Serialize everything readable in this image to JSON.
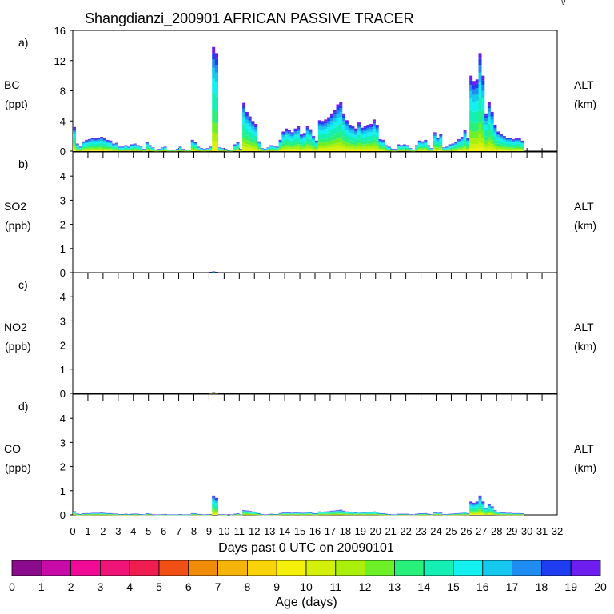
{
  "title": "Shangdianzi_200901 AFRICAN PASSIVE TRACER",
  "corner_mark": "\\/",
  "xlabel": "Days past 0 UTC on 20090101",
  "x_ticks": [
    "0",
    "1",
    "2",
    "3",
    "4",
    "5",
    "6",
    "7",
    "8",
    "9",
    "10",
    "11",
    "12",
    "13",
    "14",
    "15",
    "16",
    "17",
    "18",
    "19",
    "20",
    "21",
    "22",
    "23",
    "24",
    "25",
    "26",
    "27",
    "28",
    "29",
    "30",
    "31",
    "32"
  ],
  "right_labels": {
    "alt": "ALT",
    "unit": "(km)"
  },
  "colorbar": {
    "label": "Age (days)",
    "ticks": [
      "0",
      "1",
      "2",
      "3",
      "4",
      "5",
      "6",
      "7",
      "8",
      "9",
      "10",
      "11",
      "12",
      "13",
      "14",
      "15",
      "16",
      "17",
      "18",
      "19",
      "20"
    ],
    "colors": [
      "#8c0a8c",
      "#c80aa8",
      "#f00a96",
      "#f01478",
      "#f01e50",
      "#f05014",
      "#f08c0a",
      "#f5b40a",
      "#fad20a",
      "#f5f00a",
      "#d2f00a",
      "#aaf00a",
      "#6ef028",
      "#28f07a",
      "#14f0b4",
      "#14f0f0",
      "#14c8f0",
      "#1e8cf0",
      "#1e3cf0",
      "#6e1ef0"
    ]
  },
  "chart_data": [
    {
      "panel_label": "a)",
      "species": "BC",
      "unit": "(ppt)",
      "type": "stacked bar",
      "xlim": [
        0,
        32
      ],
      "ylim": [
        0,
        16
      ],
      "yticks": [
        "0",
        "4",
        "8",
        "12",
        "16"
      ],
      "x": [
        0.1,
        0.3,
        0.5,
        0.7,
        0.9,
        1.1,
        1.3,
        1.5,
        1.7,
        1.9,
        2.1,
        2.3,
        2.5,
        2.7,
        2.9,
        3.1,
        3.3,
        3.5,
        3.7,
        3.9,
        4.1,
        4.3,
        4.5,
        4.7,
        4.9,
        5.1,
        5.3,
        5.5,
        5.7,
        5.9,
        6.1,
        6.3,
        6.5,
        6.7,
        6.9,
        7.1,
        7.3,
        7.5,
        7.7,
        7.9,
        8.1,
        8.3,
        8.5,
        8.7,
        8.9,
        9.1,
        9.3,
        9.5,
        9.7,
        9.9,
        10.1,
        10.3,
        10.5,
        10.7,
        10.9,
        11.1,
        11.3,
        11.5,
        11.7,
        11.9,
        12.1,
        12.3,
        12.5,
        12.7,
        12.9,
        13.1,
        13.3,
        13.5,
        13.7,
        13.9,
        14.1,
        14.3,
        14.5,
        14.7,
        14.9,
        15.1,
        15.3,
        15.5,
        15.7,
        15.9,
        16.1,
        16.3,
        16.5,
        16.7,
        16.9,
        17.1,
        17.3,
        17.5,
        17.7,
        17.9,
        18.1,
        18.3,
        18.5,
        18.7,
        18.9,
        19.1,
        19.3,
        19.5,
        19.7,
        19.9,
        20.1,
        20.3,
        20.5,
        20.7,
        20.9,
        21.1,
        21.3,
        21.5,
        21.7,
        21.9,
        22.1,
        22.3,
        22.5,
        22.7,
        22.9,
        23.1,
        23.3,
        23.5,
        23.7,
        23.9,
        24.1,
        24.3,
        24.5,
        24.7,
        24.9,
        25.1,
        25.3,
        25.5,
        25.7,
        25.9,
        26.1,
        26.3,
        26.5,
        26.7,
        26.9,
        27.1,
        27.3,
        27.5,
        27.7,
        27.9,
        28.1,
        28.3,
        28.5,
        28.7,
        28.9,
        29.1,
        29.3,
        29.5,
        29.7,
        29.9,
        30.1,
        30.3,
        30.5,
        30.7,
        30.9,
        31.1,
        31.3
      ],
      "total": [
        3.2,
        1.0,
        0.6,
        1.3,
        1.5,
        1.6,
        1.8,
        1.7,
        1.8,
        1.9,
        1.7,
        1.5,
        1.4,
        1.0,
        1.1,
        0.6,
        0.6,
        0.8,
        0.6,
        0.9,
        1.0,
        0.8,
        0.7,
        0.3,
        1.2,
        0.8,
        0.5,
        0.2,
        0.3,
        0.5,
        0.6,
        0.2,
        0.2,
        0.2,
        0.3,
        0.6,
        0.3,
        0.2,
        0.2,
        1.5,
        1.2,
        0.6,
        0.4,
        0.3,
        0.4,
        0.6,
        13.8,
        13.0,
        0.5,
        0.4,
        0.3,
        0.1,
        0.2,
        0.9,
        1.2,
        0.3,
        6.4,
        5.2,
        4.6,
        4.0,
        3.6,
        1.3,
        0.4,
        0.3,
        0.5,
        0.8,
        0.7,
        0.6,
        1.5,
        2.6,
        3.0,
        2.8,
        2.5,
        3.0,
        3.3,
        2.2,
        2.4,
        3.3,
        2.9,
        2.0,
        1.4,
        4.1,
        4.0,
        4.2,
        4.5,
        5.0,
        5.5,
        6.2,
        6.5,
        5.0,
        4.1,
        3.5,
        3.4,
        3.0,
        3.8,
        3.1,
        3.3,
        3.5,
        3.6,
        4.2,
        3.5,
        1.6,
        1.5,
        0.8,
        0.6,
        0.3,
        0.3,
        0.9,
        0.8,
        0.9,
        0.8,
        0.4,
        0.2,
        0.8,
        1.4,
        1.3,
        1.5,
        0.8,
        0.4,
        2.5,
        1.8,
        2.3,
        0.5,
        0.6,
        0.9,
        1.0,
        1.2,
        1.6,
        1.9,
        2.8,
        1.7,
        10.0,
        9.3,
        9.5,
        13.0,
        10.0,
        5.0,
        6.5,
        5.2,
        3.5,
        2.6,
        2.3,
        2.0,
        1.8,
        1.8,
        1.6,
        1.7,
        1.7,
        1.4
      ]
    },
    {
      "panel_label": "b)",
      "species": "SO2",
      "unit": "(ppb)",
      "type": "stacked bar",
      "xlim": [
        0,
        32
      ],
      "ylim": [
        0,
        5
      ],
      "yticks": [
        "0",
        "1",
        "2",
        "3",
        "4"
      ],
      "x": [
        9.1,
        9.3,
        9.5
      ],
      "total": [
        0.03,
        0.05,
        0.03
      ]
    },
    {
      "panel_label": "c)",
      "species": "NO2",
      "unit": "(ppb)",
      "type": "stacked bar",
      "xlim": [
        0,
        32
      ],
      "ylim": [
        0,
        5
      ],
      "yticks": [
        "0",
        "1",
        "2",
        "3",
        "4"
      ],
      "x": [
        9.1,
        9.3,
        9.5
      ],
      "total": [
        0.03,
        0.05,
        0.03
      ]
    },
    {
      "panel_label": "d)",
      "species": "CO",
      "unit": "(ppb)",
      "type": "stacked bar",
      "xlim": [
        0,
        32
      ],
      "ylim": [
        0,
        5
      ],
      "yticks": [
        "0",
        "1",
        "2",
        "3",
        "4"
      ],
      "x": [
        0.1,
        0.3,
        0.5,
        0.7,
        0.9,
        1.1,
        1.3,
        1.5,
        1.7,
        1.9,
        2.1,
        2.3,
        2.5,
        2.7,
        2.9,
        3.1,
        3.3,
        3.5,
        3.7,
        3.9,
        4.1,
        4.3,
        4.5,
        4.7,
        4.9,
        5.1,
        5.3,
        5.5,
        5.7,
        5.9,
        6.1,
        6.3,
        6.5,
        6.7,
        6.9,
        7.1,
        7.3,
        7.5,
        7.7,
        7.9,
        8.1,
        8.3,
        8.5,
        8.7,
        8.9,
        9.1,
        9.3,
        9.5,
        9.7,
        9.9,
        10.1,
        10.3,
        10.5,
        10.7,
        10.9,
        11.1,
        11.3,
        11.5,
        11.7,
        11.9,
        12.1,
        12.3,
        12.5,
        12.7,
        12.9,
        13.1,
        13.3,
        13.5,
        13.7,
        13.9,
        14.1,
        14.3,
        14.5,
        14.7,
        14.9,
        15.1,
        15.3,
        15.5,
        15.7,
        15.9,
        16.1,
        16.3,
        16.5,
        16.7,
        16.9,
        17.1,
        17.3,
        17.5,
        17.7,
        17.9,
        18.1,
        18.3,
        18.5,
        18.7,
        18.9,
        19.1,
        19.3,
        19.5,
        19.7,
        19.9,
        20.1,
        20.3,
        20.5,
        20.7,
        20.9,
        21.1,
        21.3,
        21.5,
        21.7,
        21.9,
        22.1,
        22.3,
        22.5,
        22.7,
        22.9,
        23.1,
        23.3,
        23.5,
        23.7,
        23.9,
        24.1,
        24.3,
        24.5,
        24.7,
        24.9,
        25.1,
        25.3,
        25.5,
        25.7,
        25.9,
        26.1,
        26.3,
        26.5,
        26.7,
        26.9,
        27.1,
        27.3,
        27.5,
        27.7,
        27.9,
        28.1,
        28.3,
        28.5,
        28.7,
        28.9,
        29.1,
        29.3,
        29.5,
        29.7,
        29.9,
        30.1,
        30.3,
        30.5,
        30.7,
        30.9,
        31.1,
        31.3
      ],
      "total": [
        0.15,
        0.05,
        0.03,
        0.06,
        0.07,
        0.07,
        0.08,
        0.08,
        0.08,
        0.09,
        0.08,
        0.07,
        0.07,
        0.05,
        0.05,
        0.03,
        0.03,
        0.04,
        0.03,
        0.04,
        0.05,
        0.04,
        0.03,
        0.01,
        0.06,
        0.04,
        0.02,
        0.01,
        0.01,
        0.02,
        0.03,
        0.01,
        0.01,
        0.01,
        0.01,
        0.03,
        0.01,
        0.01,
        0.01,
        0.07,
        0.06,
        0.03,
        0.02,
        0.01,
        0.02,
        0.03,
        0.8,
        0.7,
        0.02,
        0.02,
        0.01,
        0.0,
        0.01,
        0.04,
        0.06,
        0.01,
        0.2,
        0.18,
        0.16,
        0.14,
        0.12,
        0.06,
        0.02,
        0.01,
        0.02,
        0.04,
        0.03,
        0.03,
        0.07,
        0.09,
        0.1,
        0.09,
        0.08,
        0.1,
        0.11,
        0.08,
        0.08,
        0.11,
        0.1,
        0.07,
        0.06,
        0.14,
        0.13,
        0.14,
        0.15,
        0.17,
        0.18,
        0.2,
        0.21,
        0.17,
        0.14,
        0.12,
        0.12,
        0.1,
        0.13,
        0.11,
        0.11,
        0.12,
        0.12,
        0.14,
        0.12,
        0.07,
        0.06,
        0.04,
        0.03,
        0.01,
        0.01,
        0.04,
        0.04,
        0.04,
        0.04,
        0.02,
        0.01,
        0.04,
        0.06,
        0.06,
        0.07,
        0.04,
        0.02,
        0.1,
        0.08,
        0.09,
        0.02,
        0.03,
        0.04,
        0.05,
        0.06,
        0.07,
        0.08,
        0.12,
        0.07,
        0.55,
        0.5,
        0.55,
        0.8,
        0.55,
        0.3,
        0.45,
        0.35,
        0.2,
        0.12,
        0.1,
        0.09,
        0.08,
        0.08,
        0.07,
        0.07,
        0.07,
        0.06
      ]
    }
  ]
}
